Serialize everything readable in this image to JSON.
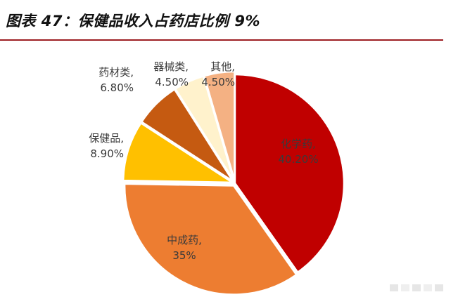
{
  "figure": {
    "title": "图表 47：保健品收入占药店比例 9%"
  },
  "chart_data": {
    "type": "pie",
    "title": "",
    "start_angle_deg": 0,
    "direction": "clockwise",
    "slices": [
      {
        "name": "化学药",
        "value": 40.2,
        "value_label": "40.20%",
        "color": "#c00000"
      },
      {
        "name": "中成药",
        "value": 35.0,
        "value_label": "35%",
        "color": "#ed7d31"
      },
      {
        "name": "保健品",
        "value": 8.9,
        "value_label": "8.90%",
        "color": "#ffc000"
      },
      {
        "name": "药材类",
        "value": 6.8,
        "value_label": "6.80%",
        "color": "#c55a11"
      },
      {
        "name": "器械类",
        "value": 4.5,
        "value_label": "4.50%",
        "color": "#fff2cc"
      },
      {
        "name": "其他",
        "value": 4.5,
        "value_label": "4.50%",
        "color": "#f4b183"
      }
    ],
    "legend": "none",
    "data_labels": "category and percent"
  },
  "colors": {
    "title_rule": "#9d1d22",
    "label_text": "#3a3a3a"
  }
}
